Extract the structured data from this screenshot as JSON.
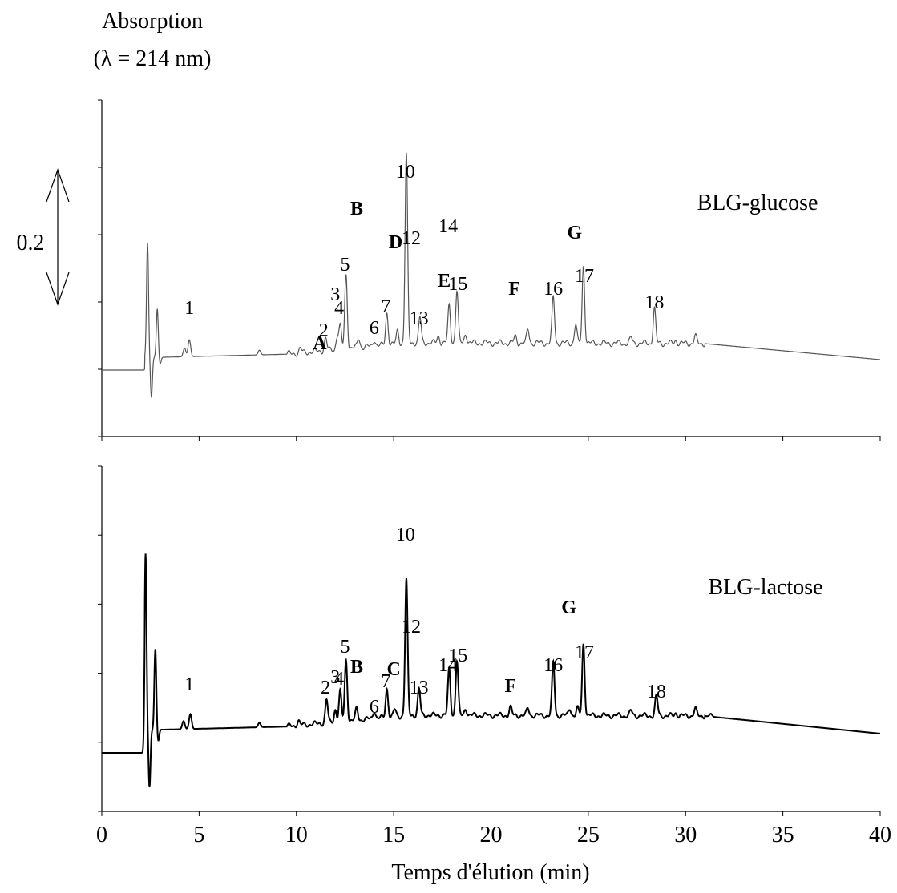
{
  "chart_data": [
    {
      "type": "line",
      "panel_label": "BLG-glucose",
      "y_axis_title_line1": "Absorption",
      "y_axis_title_line2": "(λ = 214 nm)",
      "scale_bar_label": "0.2",
      "x_range": [
        0,
        40
      ],
      "grid": false,
      "baseline": 0,
      "series_color": "#555555",
      "peaks": [
        {
          "x": 2.35,
          "y": 1.7
        },
        {
          "x": 2.55,
          "y": -0.6
        },
        {
          "x": 2.85,
          "y": 0.72
        },
        {
          "x": 3.0,
          "y": -0.1
        },
        {
          "x": 4.25,
          "y": 0.13
        },
        {
          "x": 4.5,
          "y": 0.25
        },
        {
          "x": 8.1,
          "y": 0.07
        },
        {
          "x": 10.2,
          "y": 0.06
        },
        {
          "x": 11.5,
          "y": 0.18
        },
        {
          "x": 12.1,
          "y": 0.19
        },
        {
          "x": 12.25,
          "y": 0.33
        },
        {
          "x": 12.55,
          "y": 1.1
        },
        {
          "x": 13.2,
          "y": 0.14
        },
        {
          "x": 14.0,
          "y": 0.1
        },
        {
          "x": 14.65,
          "y": 0.48
        },
        {
          "x": 15.2,
          "y": 0.2
        },
        {
          "x": 15.65,
          "y": 2.8
        },
        {
          "x": 16.35,
          "y": 0.38
        },
        {
          "x": 17.3,
          "y": 0.1
        },
        {
          "x": 17.85,
          "y": 0.55
        },
        {
          "x": 18.25,
          "y": 0.78
        },
        {
          "x": 18.7,
          "y": 0.14
        },
        {
          "x": 21.25,
          "y": 0.1
        },
        {
          "x": 21.9,
          "y": 0.2
        },
        {
          "x": 23.2,
          "y": 0.68
        },
        {
          "x": 24.35,
          "y": 0.28
        },
        {
          "x": 24.75,
          "y": 1.15
        },
        {
          "x": 27.2,
          "y": 0.08
        },
        {
          "x": 28.4,
          "y": 0.52
        },
        {
          "x": 29.5,
          "y": 0.05
        },
        {
          "x": 30.5,
          "y": 0.11
        }
      ],
      "annotations": [
        {
          "text": "1",
          "bold": false,
          "x": 4.5
        },
        {
          "text": "A",
          "bold": true,
          "x": 11.2
        },
        {
          "text": "2",
          "bold": false,
          "x": 11.4
        },
        {
          "text": "3",
          "bold": false,
          "x": 12.0
        },
        {
          "text": "4",
          "bold": false,
          "x": 12.2
        },
        {
          "text": "5",
          "bold": false,
          "x": 12.5
        },
        {
          "text": "B",
          "bold": true,
          "x": 13.1
        },
        {
          "text": "6",
          "bold": false,
          "x": 14.0
        },
        {
          "text": "7",
          "bold": false,
          "x": 14.6
        },
        {
          "text": "D",
          "bold": true,
          "x": 15.1
        },
        {
          "text": "10",
          "bold": false,
          "x": 15.6
        },
        {
          "text": "12",
          "bold": false,
          "x": 15.9
        },
        {
          "text": "13",
          "bold": false,
          "x": 16.3
        },
        {
          "text": "E",
          "bold": true,
          "x": 17.6
        },
        {
          "text": "14",
          "bold": false,
          "x": 17.8
        },
        {
          "text": "15",
          "bold": false,
          "x": 18.3
        },
        {
          "text": "F",
          "bold": true,
          "x": 21.2
        },
        {
          "text": "16",
          "bold": false,
          "x": 23.2
        },
        {
          "text": "G",
          "bold": true,
          "x": 24.3
        },
        {
          "text": "17",
          "bold": false,
          "x": 24.8
        },
        {
          "text": "18",
          "bold": false,
          "x": 28.4
        }
      ]
    },
    {
      "type": "line",
      "panel_label": "BLG-lactose",
      "x_range": [
        0,
        40
      ],
      "xlabel": "Temps d'élution (min)",
      "x_ticks": [
        "0",
        "5",
        "10",
        "15",
        "20",
        "25",
        "30",
        "35",
        "40"
      ],
      "grid": false,
      "baseline": 0,
      "series_color": "#000000",
      "peaks": [
        {
          "x": 2.25,
          "y": 3.05
        },
        {
          "x": 2.45,
          "y": -1.0
        },
        {
          "x": 2.75,
          "y": 1.4
        },
        {
          "x": 2.9,
          "y": -0.2
        },
        {
          "x": 4.2,
          "y": 0.14
        },
        {
          "x": 4.55,
          "y": 0.26
        },
        {
          "x": 8.1,
          "y": 0.08
        },
        {
          "x": 10.1,
          "y": 0.08
        },
        {
          "x": 11.55,
          "y": 0.4
        },
        {
          "x": 12.0,
          "y": 0.22
        },
        {
          "x": 12.25,
          "y": 0.52
        },
        {
          "x": 12.55,
          "y": 1.05
        },
        {
          "x": 13.1,
          "y": 0.2
        },
        {
          "x": 14.0,
          "y": 0.14
        },
        {
          "x": 14.65,
          "y": 0.5
        },
        {
          "x": 15.05,
          "y": 0.12
        },
        {
          "x": 15.65,
          "y": 2.35
        },
        {
          "x": 16.3,
          "y": 0.45
        },
        {
          "x": 17.85,
          "y": 0.8
        },
        {
          "x": 18.25,
          "y": 0.95
        },
        {
          "x": 18.7,
          "y": 0.12
        },
        {
          "x": 21.0,
          "y": 0.14
        },
        {
          "x": 21.9,
          "y": 0.12
        },
        {
          "x": 23.2,
          "y": 0.92
        },
        {
          "x": 24.05,
          "y": 0.13
        },
        {
          "x": 24.45,
          "y": 0.12
        },
        {
          "x": 24.75,
          "y": 1.25
        },
        {
          "x": 27.2,
          "y": 0.08
        },
        {
          "x": 28.5,
          "y": 0.34
        },
        {
          "x": 29.5,
          "y": 0.05
        },
        {
          "x": 30.5,
          "y": 0.12
        },
        {
          "x": 31.3,
          "y": 0.05
        }
      ],
      "annotations": [
        {
          "text": "1",
          "bold": false,
          "x": 4.5
        },
        {
          "text": "2",
          "bold": false,
          "x": 11.5
        },
        {
          "text": "3",
          "bold": false,
          "x": 12.0
        },
        {
          "text": "4",
          "bold": false,
          "x": 12.2
        },
        {
          "text": "5",
          "bold": false,
          "x": 12.5
        },
        {
          "text": "B",
          "bold": true,
          "x": 13.1
        },
        {
          "text": "6",
          "bold": false,
          "x": 14.0
        },
        {
          "text": "7",
          "bold": false,
          "x": 14.6
        },
        {
          "text": "C",
          "bold": true,
          "x": 15.0
        },
        {
          "text": "10",
          "bold": false,
          "x": 15.6
        },
        {
          "text": "12",
          "bold": false,
          "x": 15.9
        },
        {
          "text": "13",
          "bold": false,
          "x": 16.3
        },
        {
          "text": "14",
          "bold": false,
          "x": 17.8
        },
        {
          "text": "15",
          "bold": false,
          "x": 18.3
        },
        {
          "text": "F",
          "bold": true,
          "x": 21.0
        },
        {
          "text": "16",
          "bold": false,
          "x": 23.2
        },
        {
          "text": "G",
          "bold": true,
          "x": 24.0
        },
        {
          "text": "17",
          "bold": false,
          "x": 24.8
        },
        {
          "text": "18",
          "bold": false,
          "x": 28.5
        }
      ]
    }
  ]
}
